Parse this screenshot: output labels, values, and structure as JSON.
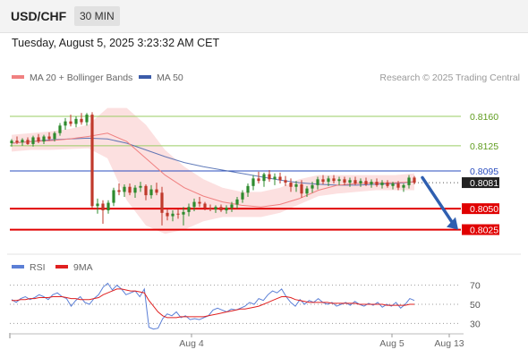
{
  "header": {
    "symbol": "USD/CHF",
    "timeframe": "30 MIN"
  },
  "timestamp": "Tuesday, August 5, 2025 3:23:32 AM CET",
  "legend": {
    "ma20": "MA 20 + Bollinger Bands",
    "ma50": "MA 50",
    "credit": "Research © 2025 Trading Central"
  },
  "rsi_legend": {
    "rsi": "RSI",
    "ma": "9MA"
  },
  "colors": {
    "ma20": "#f08080",
    "ma50": "#3b5ba9",
    "bands": "#fbd3d3",
    "up": "#2e8b2e",
    "down": "#c0392b",
    "green_level": "#9acd63",
    "blue_level": "#2a4dbf",
    "red_level": "#e00000",
    "rsi": "#5b7fd6",
    "rsi_ma": "#e02020",
    "arrow": "#2f5fb0"
  },
  "chart_data": [
    {
      "type": "candlestick",
      "title": "USD/CHF",
      "xlabel": "",
      "ylabel": "",
      "x_tick_labels": [
        "Aug 4",
        "Aug 5",
        "Aug 13"
      ],
      "ylim": [
        0.8,
        0.8192
      ],
      "price_levels": [
        {
          "label": "0.8160",
          "value": 0.816,
          "type": "resistance"
        },
        {
          "label": "0.8125",
          "value": 0.8125,
          "type": "resistance"
        },
        {
          "label": "0.8095",
          "value": 0.8095,
          "type": "pivot"
        },
        {
          "label": "0.8081",
          "value": 0.8081,
          "type": "last"
        },
        {
          "label": "0.8050",
          "value": 0.805,
          "type": "support"
        },
        {
          "label": "0.8025",
          "value": 0.8025,
          "type": "support"
        }
      ],
      "last_price": 0.8081,
      "forecast": {
        "from": 0.8087,
        "to": 0.8025
      },
      "ma50": [
        0.8128,
        0.813,
        0.8132,
        0.8133,
        0.8134,
        0.8133,
        0.8128,
        0.812,
        0.8112,
        0.8105,
        0.81,
        0.8096,
        0.8092,
        0.8088,
        0.8084,
        0.8081,
        0.8079,
        0.8078,
        0.8078,
        0.8079,
        0.808,
        0.8082
      ],
      "ma20": [
        0.8128,
        0.813,
        0.8131,
        0.8133,
        0.8136,
        0.814,
        0.813,
        0.811,
        0.809,
        0.8075,
        0.8065,
        0.8058,
        0.8054,
        0.8052,
        0.8055,
        0.8062,
        0.8072,
        0.8078,
        0.808,
        0.8081,
        0.8081,
        0.8082
      ],
      "bb_upper": [
        0.8138,
        0.814,
        0.8142,
        0.8145,
        0.815,
        0.817,
        0.817,
        0.815,
        0.812,
        0.81,
        0.8085,
        0.8075,
        0.807,
        0.807,
        0.8075,
        0.8085,
        0.809,
        0.809,
        0.809,
        0.809,
        0.809,
        0.8092
      ],
      "bb_lower": [
        0.8118,
        0.812,
        0.812,
        0.8121,
        0.8122,
        0.811,
        0.806,
        0.803,
        0.802,
        0.8025,
        0.8035,
        0.804,
        0.804,
        0.804,
        0.8045,
        0.8055,
        0.8065,
        0.8068,
        0.807,
        0.8072,
        0.8072,
        0.8072
      ],
      "candles": [
        [
          0.8128,
          0.8133,
          0.8124,
          0.8131
        ],
        [
          0.8131,
          0.8136,
          0.8127,
          0.8129
        ],
        [
          0.8129,
          0.8134,
          0.8125,
          0.8132
        ],
        [
          0.8132,
          0.8135,
          0.8126,
          0.8127
        ],
        [
          0.8127,
          0.8137,
          0.8124,
          0.8135
        ],
        [
          0.8135,
          0.8139,
          0.8128,
          0.813
        ],
        [
          0.813,
          0.8138,
          0.8127,
          0.8136
        ],
        [
          0.8136,
          0.8141,
          0.8131,
          0.8133
        ],
        [
          0.8133,
          0.8142,
          0.813,
          0.814
        ],
        [
          0.814,
          0.8152,
          0.8137,
          0.8149
        ],
        [
          0.8149,
          0.8158,
          0.8144,
          0.8154
        ],
        [
          0.8154,
          0.8162,
          0.8148,
          0.8151
        ],
        [
          0.8151,
          0.816,
          0.8147,
          0.8157
        ],
        [
          0.8157,
          0.8164,
          0.815,
          0.8153
        ],
        [
          0.8153,
          0.8164,
          0.8149,
          0.8162
        ],
        [
          0.8162,
          0.8165,
          0.805,
          0.8053
        ],
        [
          0.8053,
          0.8062,
          0.8044,
          0.8056
        ],
        [
          0.8056,
          0.806,
          0.8032,
          0.8048
        ],
        [
          0.8048,
          0.806,
          0.8044,
          0.8057
        ],
        [
          0.8057,
          0.8075,
          0.8053,
          0.8072
        ],
        [
          0.8072,
          0.808,
          0.8066,
          0.807
        ],
        [
          0.807,
          0.8079,
          0.8064,
          0.8076
        ],
        [
          0.8076,
          0.808,
          0.8066,
          0.8069
        ],
        [
          0.8069,
          0.8078,
          0.8063,
          0.8075
        ],
        [
          0.8075,
          0.8082,
          0.807,
          0.8077
        ],
        [
          0.8077,
          0.8079,
          0.806,
          0.8066
        ],
        [
          0.8066,
          0.8078,
          0.8062,
          0.8073
        ],
        [
          0.8073,
          0.8081,
          0.8066,
          0.8069
        ],
        [
          0.8069,
          0.8076,
          0.803,
          0.8045
        ],
        [
          0.8045,
          0.805,
          0.8036,
          0.8041
        ],
        [
          0.8041,
          0.8048,
          0.8035,
          0.8044
        ],
        [
          0.8044,
          0.8049,
          0.8038,
          0.8043
        ],
        [
          0.8043,
          0.8052,
          0.803,
          0.8046
        ],
        [
          0.8046,
          0.8056,
          0.8041,
          0.8052
        ],
        [
          0.8052,
          0.8062,
          0.8047,
          0.8058
        ],
        [
          0.8058,
          0.8064,
          0.8052,
          0.8056
        ],
        [
          0.8056,
          0.8058,
          0.8048,
          0.8051
        ],
        [
          0.8051,
          0.8055,
          0.8047,
          0.8049
        ],
        [
          0.8049,
          0.8054,
          0.8045,
          0.8052
        ],
        [
          0.8052,
          0.8055,
          0.8046,
          0.8048
        ],
        [
          0.8048,
          0.8054,
          0.8044,
          0.8051
        ],
        [
          0.8051,
          0.8058,
          0.8046,
          0.8055
        ],
        [
          0.8055,
          0.8064,
          0.805,
          0.8061
        ],
        [
          0.8061,
          0.8072,
          0.8057,
          0.8069
        ],
        [
          0.8069,
          0.808,
          0.8064,
          0.8077
        ],
        [
          0.8077,
          0.809,
          0.8072,
          0.8086
        ],
        [
          0.8086,
          0.8094,
          0.808,
          0.8083
        ],
        [
          0.8083,
          0.8093,
          0.8076,
          0.8091
        ],
        [
          0.8091,
          0.8096,
          0.8082,
          0.8085
        ],
        [
          0.8085,
          0.8092,
          0.8078,
          0.8088
        ],
        [
          0.8088,
          0.8093,
          0.808,
          0.8084
        ],
        [
          0.8084,
          0.8089,
          0.8077,
          0.8081
        ],
        [
          0.8081,
          0.8086,
          0.807,
          0.8076
        ],
        [
          0.8076,
          0.8083,
          0.807,
          0.8079
        ],
        [
          0.8079,
          0.8084,
          0.8063,
          0.8068
        ],
        [
          0.8068,
          0.8077,
          0.8064,
          0.8074
        ],
        [
          0.8074,
          0.8082,
          0.8069,
          0.8078
        ],
        [
          0.8078,
          0.8088,
          0.8073,
          0.8085
        ],
        [
          0.8085,
          0.809,
          0.8079,
          0.8082
        ],
        [
          0.8082,
          0.8089,
          0.8077,
          0.8086
        ],
        [
          0.8086,
          0.809,
          0.808,
          0.8083
        ],
        [
          0.8083,
          0.8088,
          0.8078,
          0.8085
        ],
        [
          0.8085,
          0.8088,
          0.8078,
          0.8081
        ],
        [
          0.8081,
          0.8087,
          0.8076,
          0.8084
        ],
        [
          0.8084,
          0.8088,
          0.8078,
          0.808
        ],
        [
          0.808,
          0.8086,
          0.8076,
          0.8083
        ],
        [
          0.8083,
          0.8087,
          0.8077,
          0.8079
        ],
        [
          0.8079,
          0.8085,
          0.8075,
          0.8082
        ],
        [
          0.8082,
          0.8086,
          0.8076,
          0.8078
        ],
        [
          0.8078,
          0.8084,
          0.8074,
          0.8081
        ],
        [
          0.8081,
          0.8084,
          0.8075,
          0.8077
        ],
        [
          0.8077,
          0.8082,
          0.8073,
          0.808
        ],
        [
          0.808,
          0.8083,
          0.8072,
          0.8075
        ],
        [
          0.8075,
          0.808,
          0.807,
          0.8078
        ],
        [
          0.8078,
          0.809,
          0.8074,
          0.8087
        ],
        [
          0.8087,
          0.8089,
          0.8079,
          0.8081
        ]
      ]
    },
    {
      "type": "line",
      "title": "RSI",
      "ylim": [
        20,
        80
      ],
      "y_ticks": [
        70,
        50,
        30
      ],
      "series": [
        {
          "name": "RSI",
          "values": [
            55,
            52,
            56,
            58,
            55,
            57,
            60,
            58,
            55,
            60,
            62,
            58,
            56,
            48,
            54,
            58,
            52,
            50,
            56,
            60,
            68,
            72,
            65,
            70,
            66,
            60,
            62,
            64,
            58,
            66,
            26,
            24,
            25,
            35,
            40,
            38,
            42,
            36,
            38,
            34,
            35,
            34,
            36,
            38,
            44,
            46,
            44,
            42,
            45,
            44,
            46,
            48,
            52,
            50,
            56,
            54,
            60,
            64,
            62,
            66,
            58,
            52,
            48,
            55,
            50,
            54,
            52,
            56,
            52,
            50,
            52,
            48,
            50,
            52,
            49,
            53,
            50,
            48,
            51,
            49,
            52,
            47,
            50,
            48,
            52,
            46,
            50,
            56,
            54
          ]
        },
        {
          "name": "9MA",
          "values": [
            54,
            54,
            55,
            55,
            56,
            56,
            57,
            57,
            57,
            58,
            58,
            58,
            57,
            56,
            56,
            55,
            55,
            55,
            56,
            57,
            60,
            62,
            64,
            66,
            66,
            65,
            64,
            64,
            63,
            62,
            54,
            48,
            42,
            38,
            36,
            36,
            36,
            37,
            37,
            37,
            37,
            37,
            37,
            38,
            39,
            40,
            41,
            42,
            43,
            44,
            45,
            45,
            46,
            47,
            48,
            50,
            52,
            54,
            56,
            58,
            58,
            57,
            55,
            54,
            53,
            52,
            52,
            52,
            52,
            52,
            51,
            51,
            51,
            51,
            51,
            51,
            50,
            50,
            50,
            50,
            50,
            50,
            49,
            49,
            49,
            49,
            49,
            50,
            50
          ]
        }
      ]
    }
  ]
}
